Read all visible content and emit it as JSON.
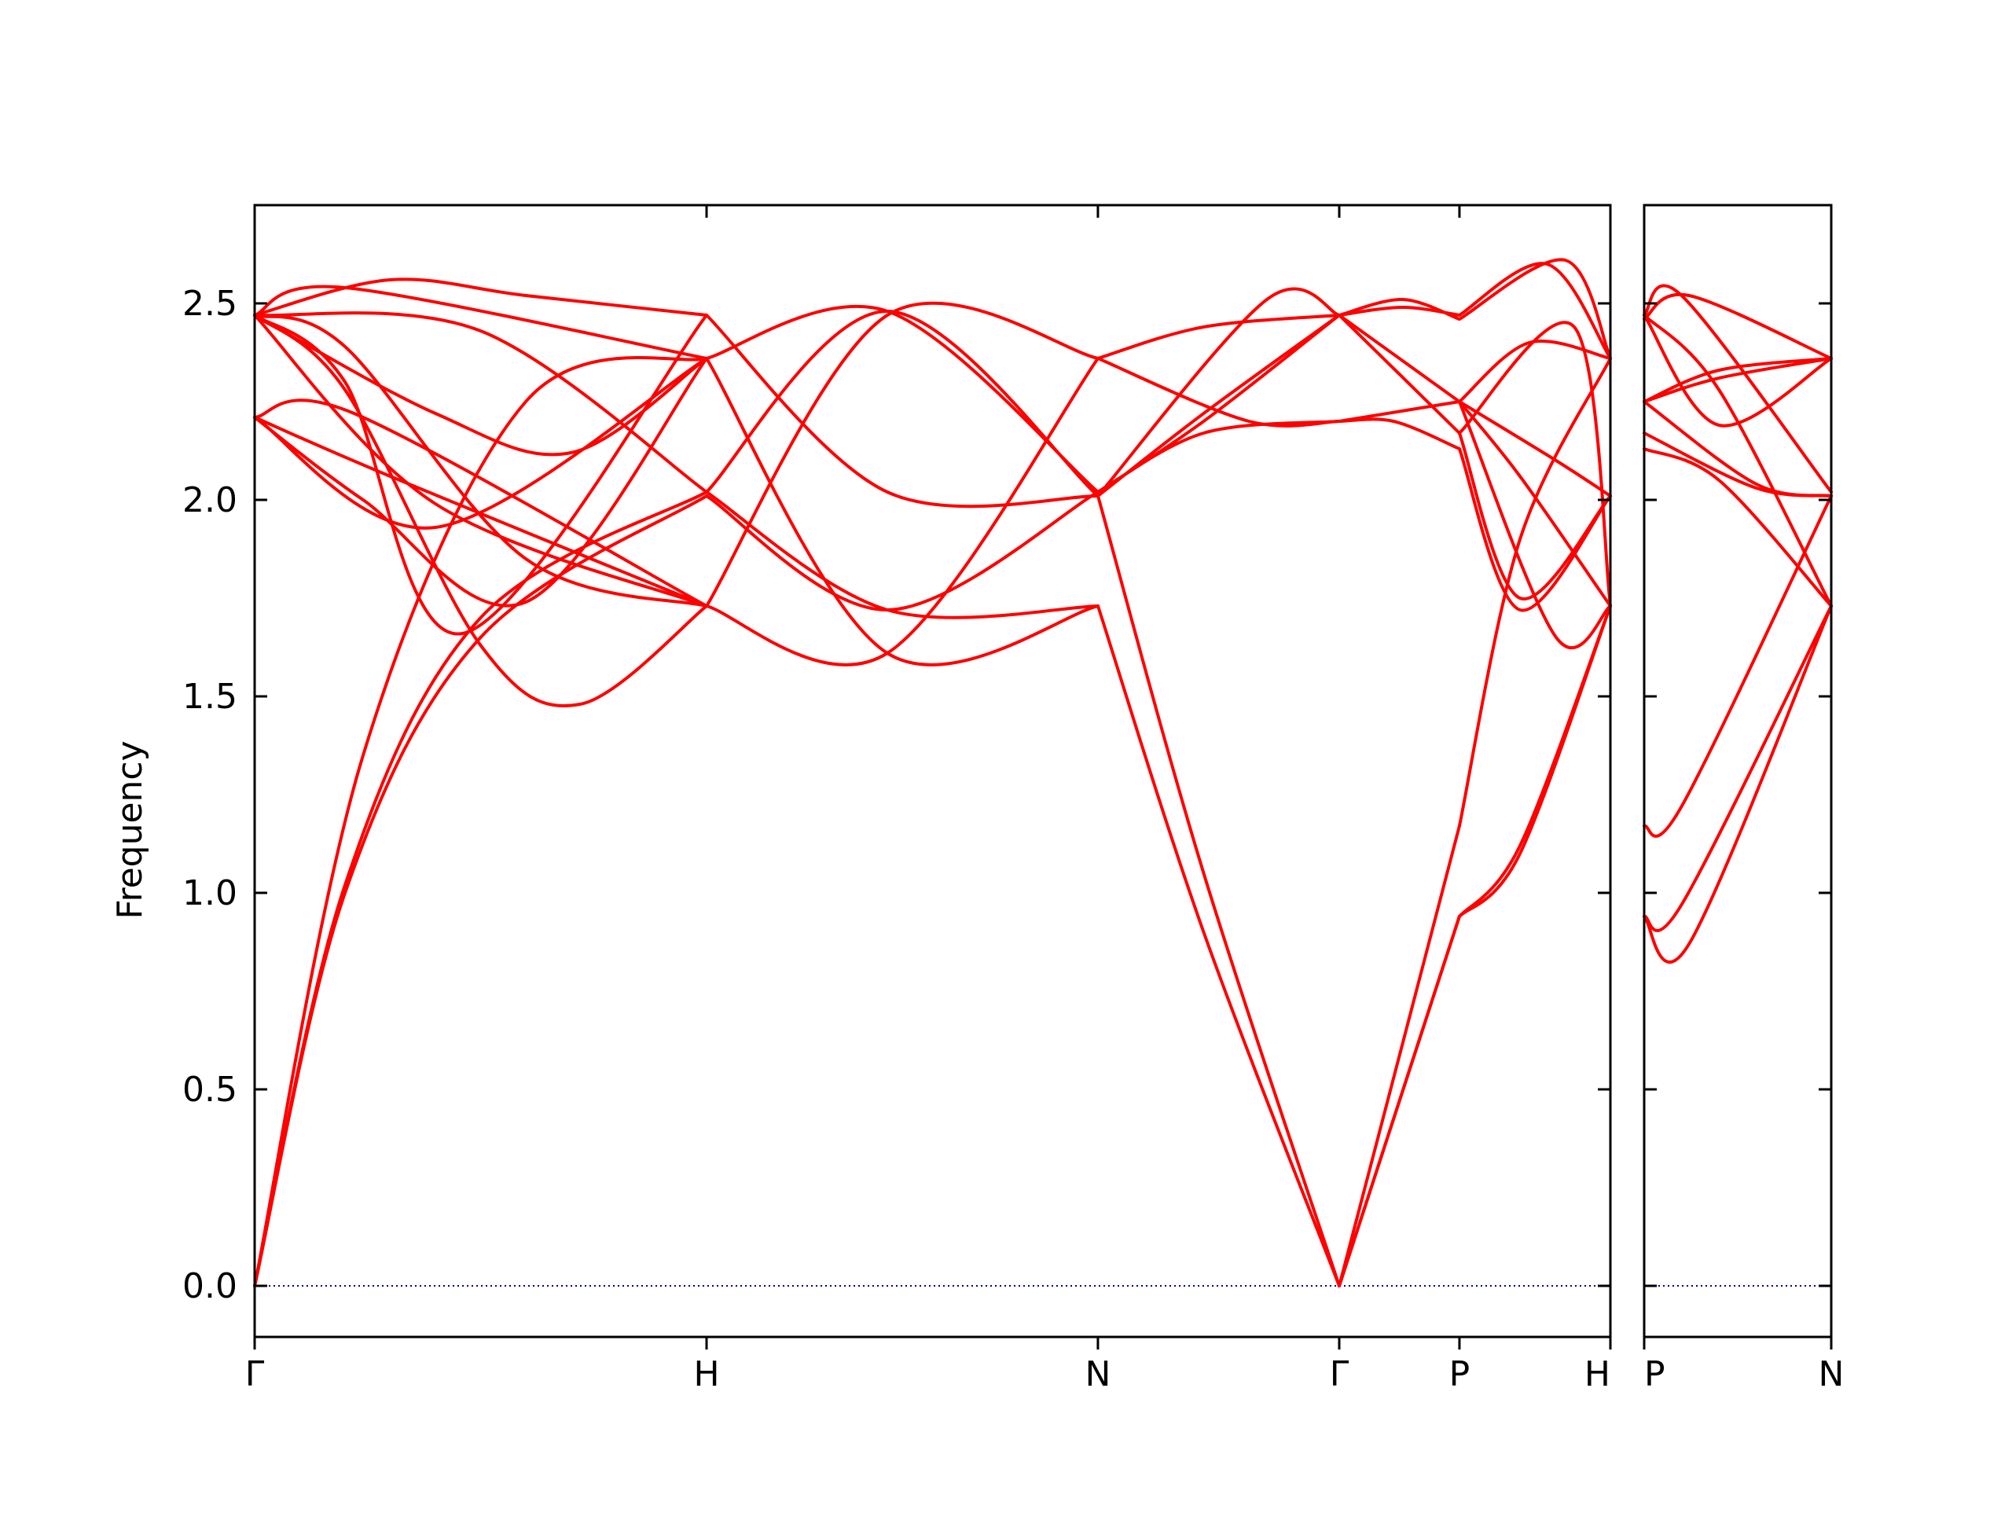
{
  "chart_data": {
    "type": "line",
    "ylabel": "Frequency",
    "ylim": [
      -0.13,
      2.75
    ],
    "yticks": [
      0.0,
      0.5,
      1.0,
      1.5,
      2.0,
      2.5
    ],
    "ytick_labels": [
      "0.0",
      "0.5",
      "1.0",
      "1.5",
      "2.0",
      "2.5"
    ],
    "line_color": "#ff0000",
    "zero_line_color": "#00008b",
    "grid": false,
    "legend": "none",
    "panels": [
      {
        "x_range": [
          0,
          1.5
        ],
        "tick_positions": [
          0,
          0.5,
          0.933,
          1.2,
          1.333,
          1.5
        ],
        "tick_labels": [
          "Γ",
          "H",
          "N",
          "Γ",
          "P",
          "H"
        ],
        "tick_label_anchor": [
          "middle",
          "middle",
          "middle",
          "middle",
          "middle",
          "end"
        ],
        "branches": [
          {
            "x": [
              0,
              0.1,
              0.25,
              0.5
            ],
            "y": [
              0.0,
              1.0,
              1.65,
              2.01
            ]
          },
          {
            "x": [
              0,
              0.1,
              0.25,
              0.5
            ],
            "y": [
              0.0,
              1.02,
              1.7,
              2.02
            ]
          },
          {
            "x": [
              0,
              0.12,
              0.3,
              0.5
            ],
            "y": [
              0.0,
              1.35,
              2.25,
              2.36
            ]
          },
          {
            "x": [
              0,
              0.1,
              0.25,
              0.36,
              0.5
            ],
            "y": [
              2.47,
              2.28,
              1.63,
              1.48,
              1.73
            ]
          },
          {
            "x": [
              0,
              0.1,
              0.23,
              0.5
            ],
            "y": [
              2.47,
              2.3,
              1.66,
              2.47
            ]
          },
          {
            "x": [
              0,
              0.1,
              0.3,
              0.5
            ],
            "y": [
              2.47,
              2.39,
              1.85,
              1.73
            ]
          },
          {
            "x": [
              0,
              0.2,
              0.5
            ],
            "y": [
              2.47,
              1.99,
              1.73
            ]
          },
          {
            "x": [
              0,
              0.15,
              0.5
            ],
            "y": [
              2.21,
              2.06,
              1.73
            ]
          },
          {
            "x": [
              0,
              0.2,
              0.5
            ],
            "y": [
              2.21,
              1.93,
              2.36
            ]
          },
          {
            "x": [
              0,
              0.12,
              0.3,
              0.5
            ],
            "y": [
              2.21,
              2.0,
              1.74,
              2.36
            ]
          },
          {
            "x": [
              0,
              0.11,
              0.5
            ],
            "y": [
              2.21,
              2.22,
              1.73
            ]
          },
          {
            "x": [
              0,
              0.2,
              0.35,
              0.5
            ],
            "y": [
              2.47,
              2.22,
              2.12,
              2.36
            ]
          },
          {
            "x": [
              0,
              0.25,
              0.5
            ],
            "y": [
              2.47,
              2.43,
              2.02
            ]
          },
          {
            "x": [
              0,
              0.1,
              0.5
            ],
            "y": [
              2.47,
              2.54,
              2.36
            ]
          },
          {
            "x": [
              0,
              0.15,
              0.3,
              0.5
            ],
            "y": [
              2.47,
              2.56,
              2.52,
              2.47
            ]
          },
          {
            "x": [
              0.5,
              0.7,
              0.933
            ],
            "y": [
              2.02,
              2.48,
              2.01
            ]
          },
          {
            "x": [
              0.5,
              0.7,
              0.933
            ],
            "y": [
              2.36,
              1.61,
              1.73
            ]
          },
          {
            "x": [
              0.5,
              0.7,
              0.933
            ],
            "y": [
              1.73,
              1.61,
              2.36
            ]
          },
          {
            "x": [
              0.5,
              0.7,
              0.933
            ],
            "y": [
              2.01,
              1.72,
              2.02
            ]
          },
          {
            "x": [
              0.5,
              0.7,
              0.933
            ],
            "y": [
              2.36,
              2.48,
              2.02
            ]
          },
          {
            "x": [
              0.5,
              0.7,
              0.933
            ],
            "y": [
              1.73,
              2.47,
              2.36
            ]
          },
          {
            "x": [
              0.5,
              0.7,
              0.933
            ],
            "y": [
              2.02,
              1.72,
              1.73
            ]
          },
          {
            "x": [
              0.5,
              0.7,
              0.933
            ],
            "y": [
              2.47,
              2.02,
              2.01
            ]
          },
          {
            "x": [
              0.933,
              1.05,
              1.2
            ],
            "y": [
              1.73,
              0.9,
              0.0
            ]
          },
          {
            "x": [
              0.933,
              1.05,
              1.2
            ],
            "y": [
              2.01,
              1.05,
              0.0
            ]
          },
          {
            "x": [
              0.933,
              1.05,
              1.2
            ],
            "y": [
              2.01,
              2.22,
              2.47
            ]
          },
          {
            "x": [
              0.933,
              1.05,
              1.2
            ],
            "y": [
              2.02,
              2.2,
              2.47
            ]
          },
          {
            "x": [
              0.933,
              1.05,
              1.2
            ],
            "y": [
              2.36,
              2.44,
              2.47
            ]
          },
          {
            "x": [
              0.933,
              1.1,
              1.2
            ],
            "y": [
              2.36,
              2.2,
              2.2
            ]
          },
          {
            "x": [
              0.933,
              1.05,
              1.2
            ],
            "y": [
              2.02,
              2.17,
              2.2
            ]
          },
          {
            "x": [
              0.933,
              1.12,
              1.2
            ],
            "y": [
              2.01,
              2.51,
              2.47
            ]
          },
          {
            "x": [
              1.2,
              1.333
            ],
            "y": [
              0.0,
              0.94
            ]
          },
          {
            "x": [
              1.2,
              1.333
            ],
            "y": [
              0.0,
              0.94
            ]
          },
          {
            "x": [
              1.2,
              1.333
            ],
            "y": [
              0.0,
              1.17
            ]
          },
          {
            "x": [
              1.2,
              1.26,
              1.333
            ],
            "y": [
              2.2,
              2.2,
              2.13
            ]
          },
          {
            "x": [
              1.2,
              1.333
            ],
            "y": [
              2.2,
              2.25
            ]
          },
          {
            "x": [
              1.2,
              1.333
            ],
            "y": [
              2.47,
              2.17
            ]
          },
          {
            "x": [
              1.2,
              1.333
            ],
            "y": [
              2.47,
              2.25
            ]
          },
          {
            "x": [
              1.2,
              1.27,
              1.333
            ],
            "y": [
              2.47,
              2.51,
              2.46
            ]
          },
          {
            "x": [
              1.2,
              1.27,
              1.333
            ],
            "y": [
              2.47,
              2.49,
              2.47
            ]
          },
          {
            "x": [
              1.333,
              1.4,
              1.5
            ],
            "y": [
              0.94,
              1.1,
              1.73
            ]
          },
          {
            "x": [
              1.333,
              1.4,
              1.5
            ],
            "y": [
              0.94,
              1.12,
              1.73
            ]
          },
          {
            "x": [
              1.333,
              1.4,
              1.5
            ],
            "y": [
              1.17,
              1.9,
              2.36
            ]
          },
          {
            "x": [
              1.333,
              1.4,
              1.5
            ],
            "y": [
              2.13,
              1.72,
              2.01
            ]
          },
          {
            "x": [
              1.333,
              1.4,
              1.5
            ],
            "y": [
              2.17,
              1.75,
              2.01
            ]
          },
          {
            "x": [
              1.333,
              1.4,
              1.5
            ],
            "y": [
              2.25,
              2.06,
              1.73
            ]
          },
          {
            "x": [
              1.333,
              1.44,
              1.5
            ],
            "y": [
              2.25,
              2.1,
              2.01
            ]
          },
          {
            "x": [
              1.333,
              1.45,
              1.5
            ],
            "y": [
              2.46,
              2.61,
              2.36
            ]
          },
          {
            "x": [
              1.333,
              1.43,
              1.5
            ],
            "y": [
              2.47,
              2.6,
              2.36
            ]
          },
          {
            "x": [
              1.333,
              1.41,
              1.5
            ],
            "y": [
              2.25,
              2.4,
              2.36
            ]
          },
          {
            "x": [
              1.333,
              1.44,
              1.5
            ],
            "y": [
              2.25,
              1.65,
              1.73
            ]
          },
          {
            "x": [
              1.333,
              1.46,
              1.5
            ],
            "y": [
              2.17,
              2.44,
              1.73
            ]
          }
        ]
      },
      {
        "x_range": [
          0,
          0.5
        ],
        "tick_positions": [
          0,
          0.5
        ],
        "tick_labels": [
          "P",
          "N"
        ],
        "tick_label_anchor": [
          "start",
          "middle"
        ],
        "branches": [
          {
            "x": [
              0,
              0.12,
              0.5
            ],
            "y": [
              0.94,
              0.87,
              1.73
            ]
          },
          {
            "x": [
              0,
              0.1,
              0.5
            ],
            "y": [
              0.94,
              0.97,
              1.73
            ]
          },
          {
            "x": [
              0,
              0.1,
              0.5
            ],
            "y": [
              1.17,
              1.22,
              2.01
            ]
          },
          {
            "x": [
              0,
              0.2,
              0.5
            ],
            "y": [
              2.13,
              2.05,
              1.73
            ]
          },
          {
            "x": [
              0,
              0.3,
              0.5
            ],
            "y": [
              2.17,
              2.03,
              2.01
            ]
          },
          {
            "x": [
              0,
              0.3,
              0.5
            ],
            "y": [
              2.25,
              2.04,
              2.01
            ]
          },
          {
            "x": [
              0,
              0.2,
              0.5
            ],
            "y": [
              2.25,
              2.33,
              2.36
            ]
          },
          {
            "x": [
              0,
              0.2,
              0.5
            ],
            "y": [
              2.25,
              2.31,
              2.36
            ]
          },
          {
            "x": [
              0,
              0.12,
              0.5
            ],
            "y": [
              2.46,
              2.52,
              2.36
            ]
          },
          {
            "x": [
              0,
              0.2,
              0.5
            ],
            "y": [
              2.47,
              2.28,
              1.73
            ]
          },
          {
            "x": [
              0,
              0.2,
              0.5
            ],
            "y": [
              2.47,
              2.19,
              2.36
            ]
          },
          {
            "x": [
              0,
              0.1,
              0.5
            ],
            "y": [
              2.47,
              2.52,
              2.02
            ]
          }
        ]
      }
    ]
  }
}
